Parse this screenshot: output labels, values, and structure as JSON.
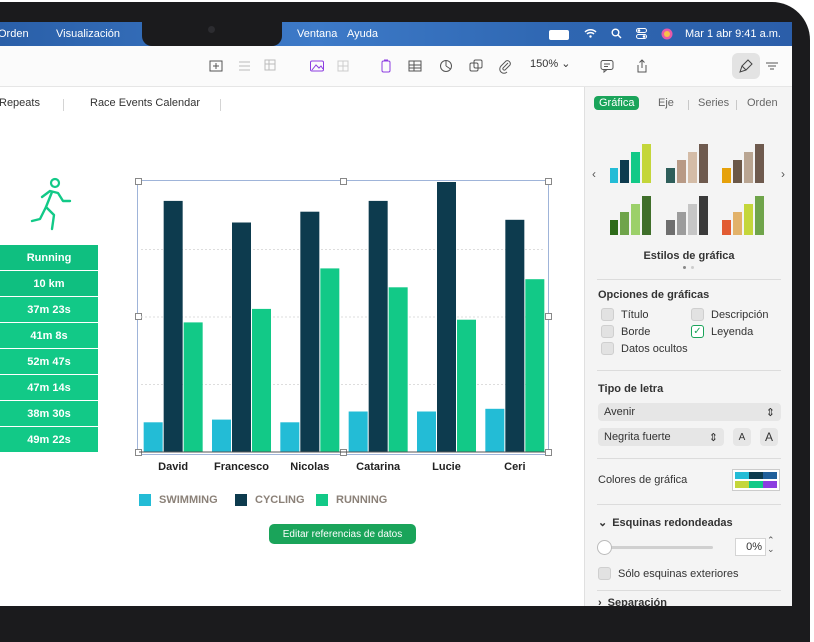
{
  "menubar": {
    "items": [
      "Orden",
      "Visualización",
      "Ventana",
      "Ayuda"
    ],
    "date_time": "Mar 1 abr  9:41 a.m."
  },
  "toolbar": {
    "zoom": "150%"
  },
  "tabs": [
    "Repeats",
    "Race Events Calendar"
  ],
  "table": {
    "header": "Running",
    "distance": "10 km",
    "times": [
      "37m 23s",
      "41m 8s",
      "52m 47s",
      "47m 14s",
      "38m 30s",
      "49m 22s"
    ]
  },
  "chart_data": {
    "type": "bar",
    "categories": [
      "David",
      "Francesco",
      "Nicolas",
      "Catarina",
      "Lucie",
      "Ceri"
    ],
    "series": [
      {
        "name": "SWIMMING",
        "color": "#23bcd6",
        "values": [
          11,
          12,
          11,
          15,
          15,
          16
        ]
      },
      {
        "name": "CYCLING",
        "color": "#0d3b4e",
        "values": [
          93,
          85,
          89,
          93,
          100,
          86
        ]
      },
      {
        "name": "RUNNING",
        "color": "#12c987",
        "values": [
          48,
          53,
          68,
          61,
          49,
          64
        ]
      }
    ],
    "ylim": [
      0,
      100
    ],
    "grid": true,
    "legend": "bottom"
  },
  "edit_button": "Editar referencias de datos",
  "sidebar": {
    "tabs": [
      "Gráfica",
      "Eje",
      "Series",
      "Orden"
    ],
    "styles_label": "Estilos de gráfica",
    "options_heading": "Opciones de gráficas",
    "options": [
      {
        "label": "Título",
        "checked": false
      },
      {
        "label": "Descripción",
        "checked": false
      },
      {
        "label": "Borde",
        "checked": false
      },
      {
        "label": "Leyenda",
        "checked": true
      },
      {
        "label": "Datos ocultos",
        "checked": false
      }
    ],
    "font_heading": "Tipo de letra",
    "font_name": "Avenir",
    "font_style": "Negrita fuerte",
    "size_small": "A",
    "size_large": "A",
    "colors_label": "Colores de gráfica",
    "corners_heading": "Esquinas redondeadas",
    "corners_value": "0%",
    "outer_only": "Sólo esquinas exteriores",
    "gap_heading": "Separación"
  }
}
